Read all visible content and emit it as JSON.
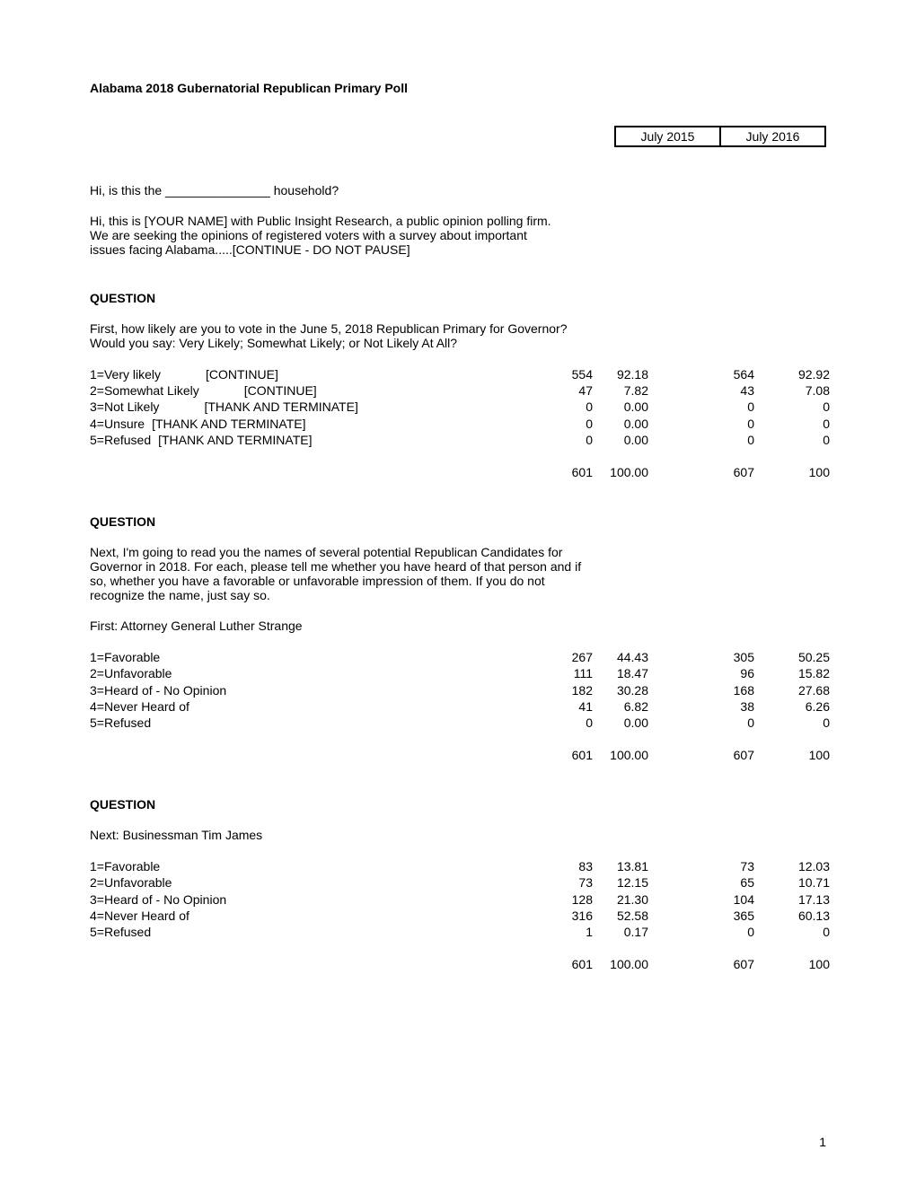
{
  "title": "Alabama 2018 Gubernatorial Republican Primary Poll",
  "date_headers": [
    "July 2015",
    "July 2016"
  ],
  "intro": {
    "line1": "Hi, is this the  _______________  household?",
    "line2": "Hi, this is [YOUR NAME] with Public Insight Research, a public opinion polling firm.  We are seeking the opinions of registered voters with a survey about important issues facing Alabama.....[CONTINUE - DO NOT PAUSE]"
  },
  "question_label": "QUESTION",
  "q1": {
    "text": "First, how likely are you to vote in the June 5, 2018 Republican Primary for Governor? Would you say: Very Likely; Somewhat Likely; or Not Likely At All?",
    "rows": [
      {
        "label": "1=Very likely",
        "action": "[CONTINUE]",
        "action_class": "label-action",
        "n1": "554",
        "p1": "92.18",
        "n2": "564",
        "p2": "92.92"
      },
      {
        "label": "2=Somewhat Likely",
        "action": "[CONTINUE]",
        "action_class": "label-action",
        "n1": "47",
        "p1": "7.82",
        "n2": "43",
        "p2": "7.08"
      },
      {
        "label": "3=Not Likely",
        "action": "[THANK AND TERMINATE]",
        "action_class": "label-action",
        "n1": "0",
        "p1": "0.00",
        "n2": "0",
        "p2": "0"
      },
      {
        "label": "4=Unsure",
        "action": "[THANK AND TERMINATE]",
        "action_class": "label-action-narrow",
        "n1": "0",
        "p1": "0.00",
        "n2": "0",
        "p2": "0"
      },
      {
        "label": "5=Refused",
        "action": "[THANK AND TERMINATE]",
        "action_class": "label-action-narrow",
        "n1": "0",
        "p1": "0.00",
        "n2": "0",
        "p2": "0"
      }
    ],
    "total": {
      "n1": "601",
      "p1": "100.00",
      "n2": "607",
      "p2": "100"
    }
  },
  "q2": {
    "text": "Next, I'm going to read you the names of several potential Republican Candidates for Governor in 2018. For each, please tell me whether you have heard of that person and if so, whether you have a favorable or unfavorable impression of them. If you do not recognize the name, just say so.",
    "subtext": "First:  Attorney General Luther Strange",
    "rows": [
      {
        "label": "1=Favorable",
        "n1": "267",
        "p1": "44.43",
        "n2": "305",
        "p2": "50.25"
      },
      {
        "label": "2=Unfavorable",
        "n1": "111",
        "p1": "18.47",
        "n2": "96",
        "p2": "15.82"
      },
      {
        "label": "3=Heard of - No Opinion",
        "n1": "182",
        "p1": "30.28",
        "n2": "168",
        "p2": "27.68"
      },
      {
        "label": "4=Never Heard of",
        "n1": "41",
        "p1": "6.82",
        "n2": "38",
        "p2": "6.26"
      },
      {
        "label": "5=Refused",
        "n1": "0",
        "p1": "0.00",
        "n2": "0",
        "p2": "0"
      }
    ],
    "total": {
      "n1": "601",
      "p1": "100.00",
      "n2": "607",
      "p2": "100"
    }
  },
  "q3": {
    "subtext": "Next:   Businessman Tim James",
    "rows": [
      {
        "label": "1=Favorable",
        "n1": "83",
        "p1": "13.81",
        "n2": "73",
        "p2": "12.03"
      },
      {
        "label": "2=Unfavorable",
        "n1": "73",
        "p1": "12.15",
        "n2": "65",
        "p2": "10.71"
      },
      {
        "label": "3=Heard of - No Opinion",
        "n1": "128",
        "p1": "21.30",
        "n2": "104",
        "p2": "17.13"
      },
      {
        "label": "4=Never Heard of",
        "n1": "316",
        "p1": "52.58",
        "n2": "365",
        "p2": "60.13"
      },
      {
        "label": "5=Refused",
        "n1": "1",
        "p1": "0.17",
        "n2": "0",
        "p2": "0"
      }
    ],
    "total": {
      "n1": "601",
      "p1": "100.00",
      "n2": "607",
      "p2": "100"
    }
  },
  "page_number": "1"
}
